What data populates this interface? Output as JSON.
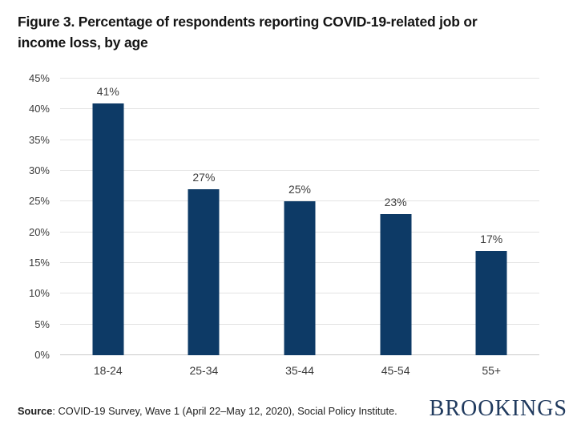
{
  "header": {
    "title_lines": [
      "Figure 3. Percentage of respondents reporting COVID-19-related job or",
      "income loss, by age"
    ]
  },
  "chart_data": {
    "type": "bar",
    "title": "Figure 3. Percentage of respondents reporting COVID-19-related job or income loss, by age",
    "categories": [
      "18-24",
      "25-34",
      "35-44",
      "45-54",
      "55+"
    ],
    "values": [
      41,
      27,
      25,
      23,
      17
    ],
    "value_labels": [
      "41%",
      "27%",
      "25%",
      "23%",
      "17%"
    ],
    "xlabel": "",
    "ylabel": "",
    "ylim": [
      0,
      45
    ],
    "ytick_step": 5,
    "ytick_suffix": "%",
    "grid": "horizontal",
    "legend": "none",
    "bar_color": "#0d3a66"
  },
  "footer": {
    "source_label": "Source",
    "source_text": ": COVID-19 Survey, Wave 1 (April 22–May 12, 2020), Social Policy Institute.",
    "logo_text": "BROOKINGS"
  },
  "colors": {
    "bar": "#0d3a66",
    "gridline": "#e4e4e4",
    "baseline": "#c9c9c9",
    "axis_text": "#3a3a3a",
    "title_text": "#141414",
    "logo_navy": "#203a5e",
    "background": "#ffffff"
  }
}
